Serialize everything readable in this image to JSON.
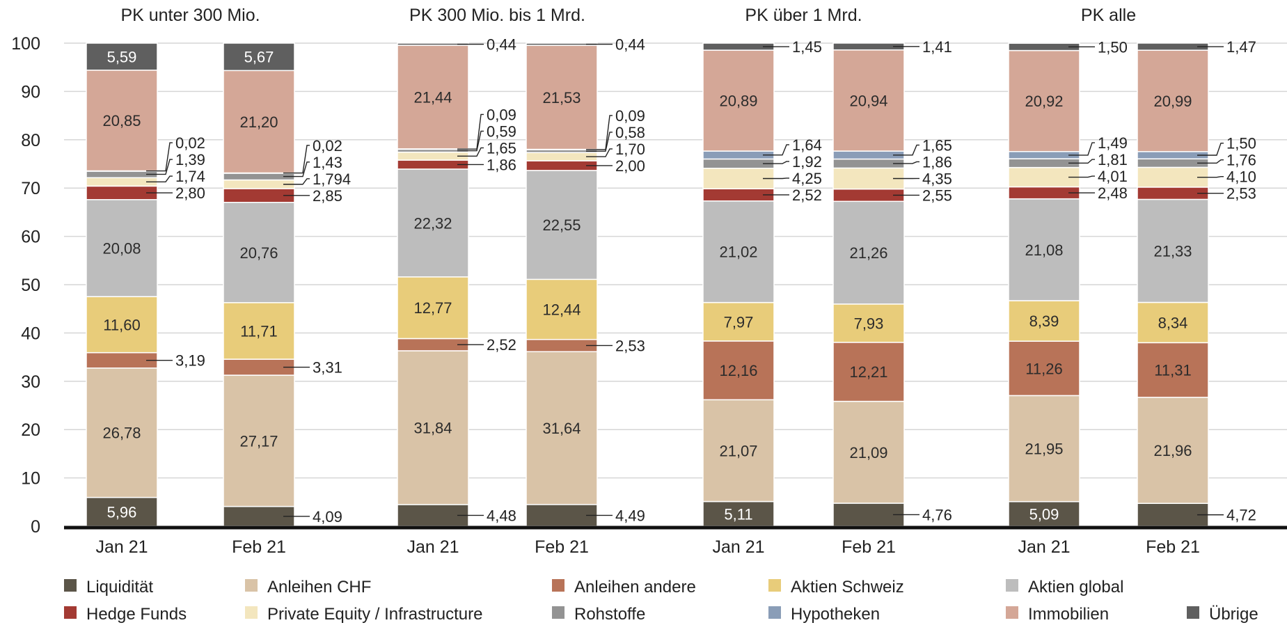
{
  "chart_data": {
    "type": "bar",
    "stacked": true,
    "ylim": [
      0,
      100
    ],
    "yticks": [
      0,
      10,
      20,
      30,
      40,
      50,
      60,
      70,
      80,
      90,
      100
    ],
    "grid": true,
    "legend_position": "bottom",
    "categories": [
      "Liquidität",
      "Anleihen CHF",
      "Anleihen andere",
      "Aktien Schweiz",
      "Aktien global",
      "Hedge Funds",
      "Private Equity / Infrastructure",
      "Rohstoffe",
      "Hypotheken",
      "Immobilien",
      "Übrige"
    ],
    "colors": [
      "#5b5548",
      "#d9c3a7",
      "#b87358",
      "#e8cc7a",
      "#bdbdbd",
      "#a33a33",
      "#f3e6be",
      "#939393",
      "#8a9db7",
      "#d4a797",
      "#5f5f5f"
    ],
    "groups": [
      {
        "title": "PK unter 300 Mio.",
        "bars": [
          {
            "label": "Jan 21",
            "values": [
              5.96,
              26.78,
              3.19,
              11.6,
              20.08,
              2.8,
              1.74,
              1.39,
              0.02,
              20.85,
              5.59
            ],
            "labels": [
              "5,96",
              "26,78",
              "3,19",
              "11,60",
              "20,08",
              "2,80",
              "1,74",
              "1,39",
              "0,02",
              "20,85",
              "5,59"
            ]
          },
          {
            "label": "Feb 21",
            "values": [
              4.09,
              27.17,
              3.31,
              11.71,
              20.76,
              2.85,
              1.794,
              1.43,
              0.02,
              21.2,
              5.67
            ],
            "labels": [
              "4,09",
              "27,17",
              "3,31",
              "11,71",
              "20,76",
              "2,85",
              "1,794",
              "1,43",
              "0,02",
              "21,20",
              "5,67"
            ]
          }
        ]
      },
      {
        "title": "PK 300 Mio. bis 1 Mrd.",
        "bars": [
          {
            "label": "Jan 21",
            "values": [
              4.48,
              31.84,
              2.52,
              12.77,
              22.32,
              1.86,
              1.65,
              0.59,
              0.09,
              21.44,
              0.44
            ],
            "labels": [
              "4,48",
              "31,84",
              "2,52",
              "12,77",
              "22,32",
              "1,86",
              "1,65",
              "0,59",
              "0,09",
              "21,44",
              "0,44"
            ]
          },
          {
            "label": "Feb 21",
            "values": [
              4.49,
              31.64,
              2.53,
              12.44,
              22.55,
              2.0,
              1.7,
              0.58,
              0.09,
              21.53,
              0.44
            ],
            "labels": [
              "4,49",
              "31,64",
              "2,53",
              "12,44",
              "22,55",
              "2,00",
              "1,70",
              "0,58",
              "0,09",
              "21,53",
              "0,44"
            ]
          }
        ]
      },
      {
        "title": "PK über 1 Mrd.",
        "bars": [
          {
            "label": "Jan 21",
            "values": [
              5.11,
              21.07,
              12.16,
              7.97,
              21.02,
              2.52,
              4.25,
              1.92,
              1.64,
              20.89,
              1.45
            ],
            "labels": [
              "5,11",
              "21,07",
              "12,16",
              "7,97",
              "21,02",
              "2,52",
              "4,25",
              "1,92",
              "1,64",
              "20,89",
              "1,45"
            ]
          },
          {
            "label": "Feb 21",
            "values": [
              4.76,
              21.09,
              12.21,
              7.93,
              21.26,
              2.55,
              4.35,
              1.86,
              1.65,
              20.94,
              1.41
            ],
            "labels": [
              "4,76",
              "21,09",
              "12,21",
              "7,93",
              "21,26",
              "2,55",
              "4,35",
              "1,86",
              "1,65",
              "20,94",
              "1,41"
            ]
          }
        ]
      },
      {
        "title": "PK alle",
        "bars": [
          {
            "label": "Jan 21",
            "values": [
              5.09,
              21.95,
              11.26,
              8.39,
              21.08,
              2.48,
              4.01,
              1.81,
              1.49,
              20.92,
              1.5
            ],
            "labels": [
              "5,09",
              "21,95",
              "11,26",
              "8,39",
              "21,08",
              "2,48",
              "4,01",
              "1,81",
              "1,49",
              "20,92",
              "1,50"
            ]
          },
          {
            "label": "Feb 21",
            "values": [
              4.72,
              21.96,
              11.31,
              8.34,
              21.33,
              2.53,
              4.1,
              1.76,
              1.5,
              20.99,
              1.47
            ],
            "labels": [
              "4,72",
              "21,96",
              "11,31",
              "8,34",
              "21,33",
              "2,53",
              "4,10",
              "1,76",
              "1,50",
              "20,99",
              "1,47"
            ]
          }
        ]
      }
    ]
  }
}
